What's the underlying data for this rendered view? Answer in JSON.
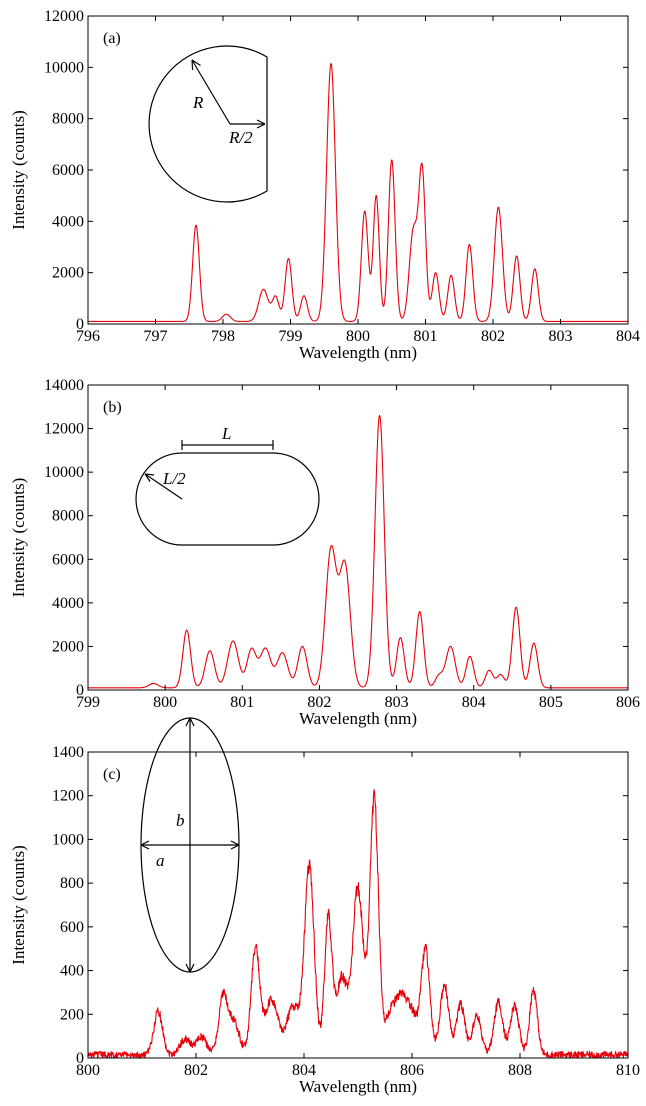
{
  "colors": {
    "spectrum": "#e8000b",
    "axes": "#000000"
  },
  "chart_data": [
    {
      "type": "line",
      "panel_label": "(a)",
      "xlabel": "Wavelength (nm)",
      "ylabel": "Intensity (counts)",
      "xlim": [
        796,
        804
      ],
      "ylim": [
        0,
        12000
      ],
      "xticks": [
        "796",
        "797",
        "798",
        "799",
        "800",
        "801",
        "802",
        "803",
        "804"
      ],
      "yticks": [
        "0",
        "2000",
        "4000",
        "6000",
        "8000",
        "10000",
        "12000"
      ],
      "grid": false,
      "inset": {
        "shape": "truncated circle",
        "labels": [
          "R",
          "R/2"
        ]
      },
      "series": [
        {
          "baseline": 100,
          "peaks": [
            [
              797.6,
              3750,
              0.05
            ],
            [
              798.05,
              280,
              0.06
            ],
            [
              798.6,
              1250,
              0.07
            ],
            [
              798.78,
              950,
              0.05
            ],
            [
              798.97,
              2450,
              0.05
            ],
            [
              799.2,
              1000,
              0.05
            ],
            [
              799.6,
              10050,
              0.065
            ],
            [
              800.1,
              4300,
              0.05
            ],
            [
              800.27,
              4900,
              0.045
            ],
            [
              800.5,
              6300,
              0.05
            ],
            [
              800.82,
              3500,
              0.06
            ],
            [
              800.95,
              5800,
              0.05
            ],
            [
              801.15,
              1900,
              0.05
            ],
            [
              801.38,
              1800,
              0.05
            ],
            [
              801.65,
              3000,
              0.05
            ],
            [
              802.08,
              4450,
              0.06
            ],
            [
              802.35,
              2550,
              0.05
            ],
            [
              802.62,
              2050,
              0.05
            ]
          ]
        }
      ]
    },
    {
      "type": "line",
      "panel_label": "(b)",
      "xlabel": "Wavelength (nm)",
      "ylabel": "Intensity (counts)",
      "xlim": [
        799,
        806
      ],
      "ylim": [
        0,
        14000
      ],
      "xticks": [
        "799",
        "800",
        "801",
        "802",
        "803",
        "804",
        "805",
        "806"
      ],
      "yticks": [
        "0",
        "2000",
        "4000",
        "6000",
        "8000",
        "10000",
        "12000",
        "14000"
      ],
      "grid": false,
      "inset": {
        "shape": "stadium",
        "labels": [
          "L",
          "L/2"
        ]
      },
      "series": [
        {
          "baseline": 100,
          "peaks": [
            [
              799.85,
              200,
              0.06
            ],
            [
              800.28,
              2650,
              0.05
            ],
            [
              800.58,
              1700,
              0.06
            ],
            [
              800.88,
              2150,
              0.07
            ],
            [
              801.12,
              1750,
              0.06
            ],
            [
              801.3,
              1800,
              0.07
            ],
            [
              801.52,
              1600,
              0.07
            ],
            [
              801.78,
              1900,
              0.06
            ],
            [
              802.15,
              6300,
              0.07
            ],
            [
              802.33,
              5600,
              0.07
            ],
            [
              802.78,
              12500,
              0.06
            ],
            [
              803.05,
              2300,
              0.05
            ],
            [
              803.3,
              3500,
              0.05
            ],
            [
              803.55,
              550,
              0.05
            ],
            [
              803.7,
              1900,
              0.06
            ],
            [
              803.95,
              1450,
              0.05
            ],
            [
              804.2,
              800,
              0.05
            ],
            [
              804.35,
              600,
              0.05
            ],
            [
              804.55,
              3700,
              0.05
            ],
            [
              804.78,
              2050,
              0.05
            ]
          ]
        }
      ]
    },
    {
      "type": "line",
      "panel_label": "(c)",
      "xlabel": "Wavelength (nm)",
      "ylabel": "Intensity (counts)",
      "xlim": [
        800,
        810
      ],
      "ylim": [
        0,
        1400
      ],
      "xticks": [
        "800",
        "802",
        "804",
        "806",
        "808",
        "810"
      ],
      "yticks": [
        "0",
        "200",
        "400",
        "600",
        "800",
        "1000",
        "1200",
        "1400"
      ],
      "grid": false,
      "inset": {
        "shape": "ellipse",
        "labels": [
          "a",
          "b"
        ]
      },
      "series": [
        {
          "baseline": 15,
          "noise": 15,
          "peaks": [
            [
              801.3,
              200,
              0.08
            ],
            [
              801.8,
              70,
              0.1
            ],
            [
              802.1,
              80,
              0.1
            ],
            [
              802.5,
              260,
              0.08
            ],
            [
              802.7,
              150,
              0.1
            ],
            [
              803.1,
              480,
              0.08
            ],
            [
              803.4,
              250,
              0.12
            ],
            [
              803.8,
              220,
              0.12
            ],
            [
              804.1,
              850,
              0.09
            ],
            [
              804.45,
              620,
              0.07
            ],
            [
              804.7,
              350,
              0.1
            ],
            [
              805.0,
              760,
              0.1
            ],
            [
              805.3,
              1170,
              0.08
            ],
            [
              805.6,
              180,
              0.1
            ],
            [
              805.8,
              230,
              0.1
            ],
            [
              806.0,
              180,
              0.1
            ],
            [
              806.25,
              480,
              0.08
            ],
            [
              806.6,
              320,
              0.08
            ],
            [
              806.9,
              230,
              0.08
            ],
            [
              807.2,
              180,
              0.08
            ],
            [
              807.6,
              240,
              0.08
            ],
            [
              807.9,
              220,
              0.08
            ],
            [
              808.25,
              300,
              0.07
            ]
          ]
        }
      ]
    }
  ]
}
